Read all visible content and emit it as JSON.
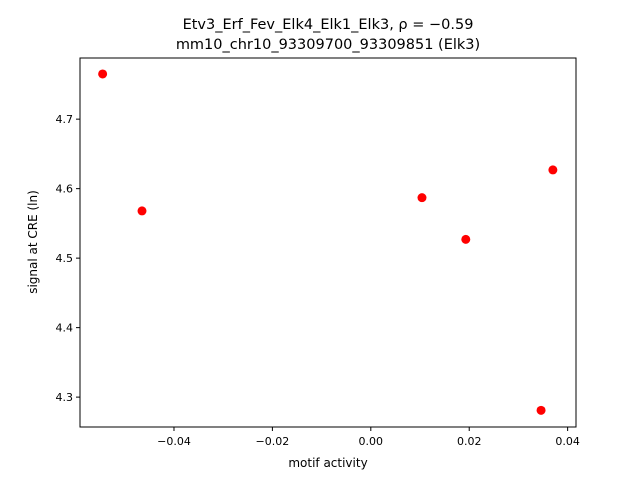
{
  "chart_data": {
    "type": "scatter",
    "title": "Etv3_Erf_Fev_Elk4_Elk1_Elk3, ρ = −0.59",
    "subtitle": "mm10_chr10_93309700_93309851 (Elk3)",
    "xlabel": "motif activity",
    "ylabel": "signal at CRE (ln)",
    "xlim": [
      -0.0591,
      0.0417
    ],
    "ylim": [
      4.257,
      4.788
    ],
    "xticks": [
      -0.04,
      -0.02,
      0.0,
      0.02,
      0.04
    ],
    "xtick_labels": [
      "−0.04",
      "−0.02",
      "0.00",
      "0.02",
      "0.04"
    ],
    "yticks": [
      4.3,
      4.4,
      4.5,
      4.6,
      4.7
    ],
    "ytick_labels": [
      "4.3",
      "4.4",
      "4.5",
      "4.6",
      "4.7"
    ],
    "grid": false,
    "marker_color": "#ff0000",
    "points": [
      {
        "x": -0.0545,
        "y": 4.765
      },
      {
        "x": -0.0465,
        "y": 4.568
      },
      {
        "x": 0.0104,
        "y": 4.587
      },
      {
        "x": 0.0193,
        "y": 4.527
      },
      {
        "x": 0.037,
        "y": 4.627
      },
      {
        "x": 0.0346,
        "y": 4.281
      }
    ]
  }
}
